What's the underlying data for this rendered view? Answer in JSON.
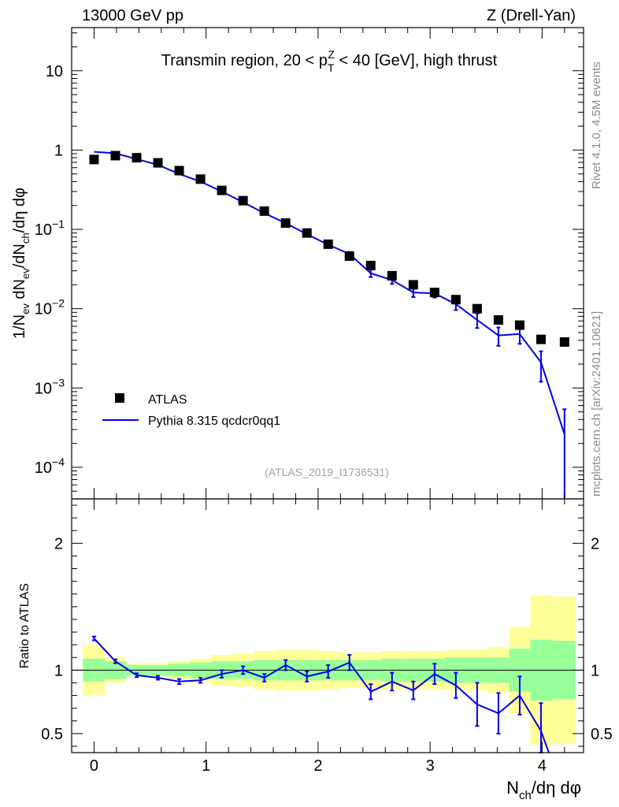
{
  "header": {
    "left": "13000 GeV pp",
    "right": "Z (Drell-Yan)"
  },
  "side_labels": {
    "rivet": "Rivet 4.1.0,  4.5M events",
    "source": "mcplots.cern.ch [arXiv:2401.10621]"
  },
  "chart_data": [
    {
      "type": "line",
      "panel": "main",
      "title": "Transmin region, 20 < p_T^Z < 40 [GeV], high thrust",
      "title_parts": {
        "pre": "Transmin region, 20 < p",
        "sup": "Z",
        "sub": "T",
        "post": " < 40 [GeV], high thrust"
      },
      "ylabel": "1/N_ev dN_ev/dN_ch/dη dφ",
      "ylabel_parts": {
        "a": "1/N",
        "a_sub": "ev",
        "b": " dN",
        "b_sub": "ev",
        "c": "/dN",
        "c_sub": "ch",
        "d": "/dη dφ"
      },
      "yscale": "log",
      "ylim": [
        4e-05,
        35
      ],
      "xlim": [
        -0.2,
        4.37
      ],
      "ytick_labels": [
        {
          "value": 10,
          "base": "10",
          "exp": ""
        },
        {
          "value": 1,
          "base": "1",
          "exp": ""
        },
        {
          "value": 0.1,
          "base": "10",
          "exp": "−1"
        },
        {
          "value": 0.01,
          "base": "10",
          "exp": "−2"
        },
        {
          "value": 0.001,
          "base": "10",
          "exp": "−3"
        },
        {
          "value": 0.0001,
          "base": "10",
          "exp": "−4"
        }
      ],
      "watermark": "(ATLAS_2019_I1736531)",
      "legend": {
        "position": "lower-left",
        "entries": [
          "ATLAS",
          "Pythia 8.315 qcdcr0qq1"
        ]
      },
      "series": [
        {
          "name": "ATLAS",
          "style": "black square markers",
          "x": [
            0,
            0.19,
            0.38,
            0.57,
            0.76,
            0.95,
            1.14,
            1.33,
            1.52,
            1.71,
            1.9,
            2.09,
            2.28,
            2.47,
            2.66,
            2.85,
            3.04,
            3.23,
            3.42,
            3.61,
            3.8,
            3.99,
            4.2
          ],
          "y": [
            0.76,
            0.85,
            0.8,
            0.69,
            0.55,
            0.43,
            0.31,
            0.23,
            0.17,
            0.12,
            0.09,
            0.065,
            0.046,
            0.035,
            0.026,
            0.02,
            0.016,
            0.013,
            0.01,
            0.0072,
            0.0062,
            0.0041,
            0.0038
          ]
        },
        {
          "name": "Pythia 8.315 qcdcr0qq1",
          "style": "blue line with error bars",
          "color": "#0000ee",
          "x": [
            0,
            0.19,
            0.38,
            0.57,
            0.76,
            0.95,
            1.14,
            1.33,
            1.52,
            1.71,
            1.9,
            2.09,
            2.28,
            2.47,
            2.66,
            2.85,
            3.04,
            3.23,
            3.42,
            3.61,
            3.8,
            3.99,
            4.2
          ],
          "y": [
            0.95,
            0.91,
            0.77,
            0.65,
            0.5,
            0.4,
            0.3,
            0.22,
            0.16,
            0.12,
            0.087,
            0.064,
            0.049,
            0.028,
            0.023,
            0.016,
            0.0156,
            0.0114,
            0.0072,
            0.0046,
            0.0048,
            0.0021,
            0.00026
          ],
          "y_err_lo": [
            0.02,
            0.02,
            0.015,
            0.012,
            0.01,
            0.008,
            0.006,
            0.005,
            0.004,
            0.003,
            0.003,
            0.003,
            0.003,
            0.003,
            0.0025,
            0.002,
            0.0018,
            0.0018,
            0.0015,
            0.0012,
            0.0012,
            0.0009,
            0.00024
          ],
          "y_err_hi": [
            0.02,
            0.02,
            0.015,
            0.012,
            0.01,
            0.008,
            0.006,
            0.005,
            0.004,
            0.003,
            0.003,
            0.003,
            0.003,
            0.003,
            0.0025,
            0.002,
            0.0018,
            0.0018,
            0.0015,
            0.0012,
            0.0012,
            0.0008,
            0.00028
          ]
        }
      ]
    },
    {
      "type": "line",
      "panel": "ratio",
      "ylabel": "Ratio to ATLAS",
      "xlabel": "N_ch/dη dφ",
      "xlabel_parts": {
        "a": "N",
        "a_sub": "ch",
        "b": "/dη dφ"
      },
      "ylim": [
        0.35,
        2.35
      ],
      "xlim": [
        -0.2,
        4.37
      ],
      "xtick_labels": [
        0,
        1,
        2,
        3,
        4
      ],
      "ytick_labels": [
        0.5,
        1,
        2
      ],
      "bands": {
        "bin_edges": [
          -0.1,
          0.095,
          0.285,
          0.475,
          0.665,
          0.855,
          1.045,
          1.235,
          1.425,
          1.615,
          1.805,
          1.995,
          2.185,
          2.375,
          2.565,
          2.755,
          2.945,
          3.135,
          3.325,
          3.515,
          3.705,
          3.895,
          4.085,
          4.3
        ],
        "stat_lo": [
          0.91,
          0.93,
          0.96,
          0.96,
          0.95,
          0.94,
          0.93,
          0.93,
          0.92,
          0.92,
          0.92,
          0.92,
          0.92,
          0.92,
          0.91,
          0.91,
          0.91,
          0.9,
          0.9,
          0.9,
          0.83,
          0.76,
          0.77
        ],
        "stat_hi": [
          1.09,
          1.07,
          1.04,
          1.04,
          1.05,
          1.06,
          1.07,
          1.07,
          1.08,
          1.08,
          1.08,
          1.08,
          1.08,
          1.08,
          1.09,
          1.09,
          1.09,
          1.1,
          1.1,
          1.1,
          1.17,
          1.24,
          1.23
        ],
        "total_lo": [
          0.8,
          0.9,
          0.95,
          0.95,
          0.93,
          0.91,
          0.88,
          0.87,
          0.85,
          0.84,
          0.84,
          0.85,
          0.86,
          0.86,
          0.85,
          0.85,
          0.85,
          0.84,
          0.84,
          0.82,
          0.66,
          0.41,
          0.42
        ],
        "total_hi": [
          1.2,
          1.1,
          1.05,
          1.05,
          1.07,
          1.09,
          1.12,
          1.13,
          1.15,
          1.16,
          1.16,
          1.15,
          1.14,
          1.14,
          1.15,
          1.15,
          1.15,
          1.16,
          1.16,
          1.18,
          1.34,
          1.59,
          1.58
        ]
      },
      "series": [
        {
          "name": "Pythia 8.315 qcdcr0qq1",
          "x": [
            0,
            0.19,
            0.38,
            0.57,
            0.76,
            0.95,
            1.14,
            1.33,
            1.52,
            1.71,
            1.9,
            2.09,
            2.28,
            2.47,
            2.66,
            2.85,
            3.04,
            3.23,
            3.42,
            3.61,
            3.8,
            3.99
          ],
          "y": [
            1.25,
            1.07,
            0.96,
            0.94,
            0.91,
            0.92,
            0.97,
            1.0,
            0.94,
            1.04,
            0.95,
            0.99,
            1.06,
            0.83,
            0.91,
            0.84,
            0.97,
            0.88,
            0.73,
            0.66,
            0.8,
            0.52
          ],
          "y_err": [
            0.015,
            0.015,
            0.015,
            0.015,
            0.02,
            0.02,
            0.03,
            0.03,
            0.03,
            0.04,
            0.04,
            0.05,
            0.06,
            0.06,
            0.07,
            0.07,
            0.08,
            0.1,
            0.17,
            0.16,
            0.15,
            0.22
          ]
        }
      ]
    }
  ]
}
